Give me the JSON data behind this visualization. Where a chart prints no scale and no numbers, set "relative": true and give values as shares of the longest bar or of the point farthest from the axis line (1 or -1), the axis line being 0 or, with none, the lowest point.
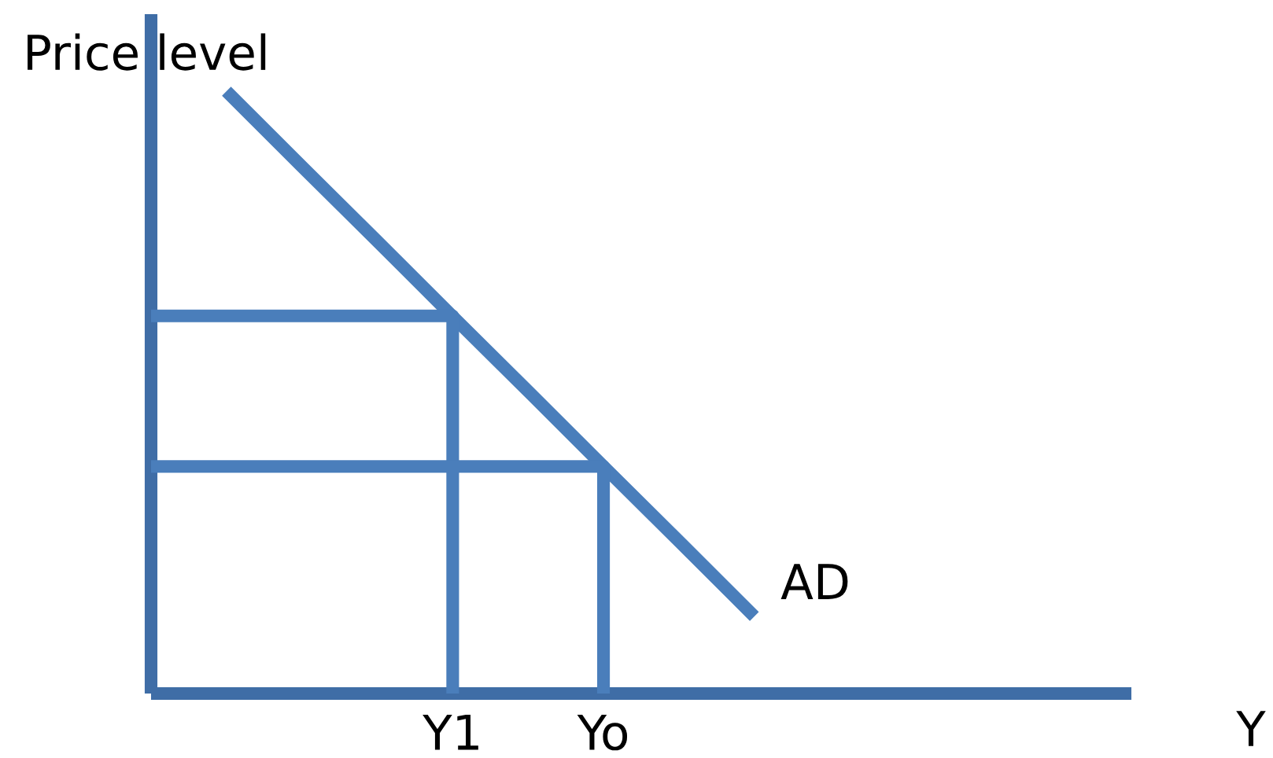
{
  "chart_data": {
    "type": "line",
    "relative": true,
    "xlabel": "Y",
    "ylabel": "Price level",
    "line_style": "solid",
    "categories": [
      null,
      null,
      null,
      null,
      "Y1",
      null,
      "Yo",
      null,
      null,
      null,
      null,
      null,
      null,
      null
    ],
    "series": [
      {
        "name": "AD",
        "color": "#4a7ebb",
        "values": [
          null,
          1,
          0.875,
          0.751,
          0.626,
          0.502,
          0.377,
          0.253,
          0.128,
          null,
          null,
          null,
          null,
          null
        ]
      },
      {
        "type": "step",
        "color": "#4a7ebb",
        "values": [
          0.627,
          0.627,
          0.627,
          0.627,
          0,
          null,
          null,
          null,
          null,
          null,
          null,
          null,
          null,
          null
        ]
      },
      {
        "type": "step",
        "color": "#4a7ebb",
        "values": [
          0.377,
          0.377,
          0.377,
          0.377,
          0.377,
          0.377,
          0,
          null,
          null,
          null,
          null,
          null,
          null,
          null
        ]
      }
    ]
  }
}
